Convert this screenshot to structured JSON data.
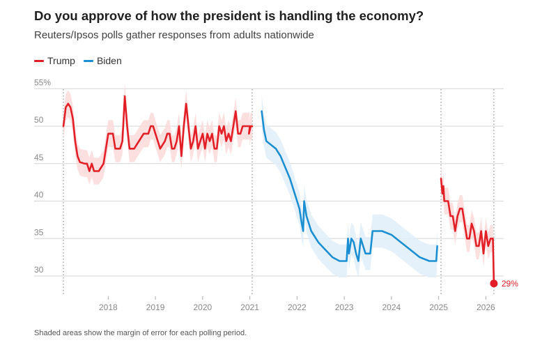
{
  "chart_data": {
    "type": "line",
    "title": "Do you approve of how the president is handling the economy?",
    "subtitle": "Reuters/Ipsos polls gather responses from adults nationwide",
    "footnote": "Shaded areas show the margin of error for each polling period.",
    "y_ticks": [
      {
        "value": 55,
        "label": "55%"
      },
      {
        "value": 50,
        "label": "50"
      },
      {
        "value": 45,
        "label": "45"
      },
      {
        "value": 40,
        "label": "40"
      },
      {
        "value": 35,
        "label": "35"
      },
      {
        "value": 30,
        "label": "30"
      }
    ],
    "x_ticks": [
      {
        "value": 2018,
        "label": "2018"
      },
      {
        "value": 2019,
        "label": "2019"
      },
      {
        "value": 2020,
        "label": "2020"
      },
      {
        "value": 2021,
        "label": "2021"
      },
      {
        "value": 2022,
        "label": "2022"
      },
      {
        "value": 2023,
        "label": "2023"
      },
      {
        "value": 2024,
        "label": "2024"
      },
      {
        "value": 2025,
        "label": "2025"
      },
      {
        "value": 2026,
        "label": "2026"
      }
    ],
    "ylim": [
      27,
      56
    ],
    "xlim": [
      2017.0,
      2026.5
    ],
    "term_markers": [
      2017.05,
      2021.05,
      2025.05,
      2026.17
    ],
    "grid": true,
    "legend_position": "top-left",
    "end_label": {
      "text": "29%",
      "x": 2026.17,
      "y": 29
    },
    "series": [
      {
        "name": "Trump",
        "color": "#e21f26",
        "band_color": "#fbdadb",
        "margin": 1.8,
        "segments": [
          [
            [
              2017.05,
              50
            ],
            [
              2017.1,
              52.5
            ],
            [
              2017.15,
              53
            ],
            [
              2017.2,
              52.5
            ],
            [
              2017.25,
              51
            ],
            [
              2017.3,
              48
            ],
            [
              2017.35,
              46
            ],
            [
              2017.4,
              45.2
            ],
            [
              2017.5,
              45
            ],
            [
              2017.55,
              45
            ],
            [
              2017.6,
              44
            ],
            [
              2017.65,
              45
            ],
            [
              2017.7,
              44
            ],
            [
              2017.8,
              44
            ],
            [
              2017.9,
              45
            ],
            [
              2017.95,
              47
            ],
            [
              2018.0,
              49
            ],
            [
              2018.1,
              49
            ],
            [
              2018.15,
              47
            ],
            [
              2018.25,
              47
            ],
            [
              2018.3,
              48
            ],
            [
              2018.35,
              54
            ],
            [
              2018.4,
              50
            ],
            [
              2018.45,
              47
            ],
            [
              2018.55,
              47
            ],
            [
              2018.65,
              48
            ],
            [
              2018.75,
              49
            ],
            [
              2018.85,
              49
            ],
            [
              2018.9,
              50
            ],
            [
              2018.95,
              50
            ],
            [
              2019.0,
              49
            ],
            [
              2019.05,
              48
            ],
            [
              2019.1,
              47
            ],
            [
              2019.2,
              48
            ],
            [
              2019.25,
              49
            ],
            [
              2019.3,
              49
            ],
            [
              2019.35,
              47
            ],
            [
              2019.4,
              47
            ],
            [
              2019.45,
              48
            ],
            [
              2019.5,
              50
            ],
            [
              2019.55,
              46
            ],
            [
              2019.6,
              50
            ],
            [
              2019.65,
              53
            ],
            [
              2019.7,
              50
            ],
            [
              2019.75,
              47
            ],
            [
              2019.8,
              48
            ],
            [
              2019.85,
              50
            ],
            [
              2019.9,
              47
            ],
            [
              2019.95,
              48
            ],
            [
              2020.0,
              49
            ],
            [
              2020.05,
              47
            ],
            [
              2020.1,
              49
            ],
            [
              2020.15,
              48
            ],
            [
              2020.2,
              49
            ],
            [
              2020.25,
              47
            ],
            [
              2020.3,
              47
            ],
            [
              2020.35,
              50
            ],
            [
              2020.4,
              49
            ],
            [
              2020.45,
              50
            ],
            [
              2020.5,
              48
            ],
            [
              2020.55,
              49
            ],
            [
              2020.6,
              48
            ],
            [
              2020.65,
              50
            ],
            [
              2020.7,
              52
            ],
            [
              2020.75,
              49
            ],
            [
              2020.8,
              49
            ],
            [
              2020.85,
              50
            ],
            [
              2020.9,
              50
            ],
            [
              2021.0,
              50
            ],
            [
              2020.98,
              49
            ],
            [
              2021.02,
              50
            ],
            [
              2021.05,
              50
            ]
          ],
          [
            [
              2025.05,
              43
            ],
            [
              2025.08,
              41
            ],
            [
              2025.1,
              42
            ],
            [
              2025.12,
              40
            ],
            [
              2025.15,
              40
            ],
            [
              2025.2,
              40
            ],
            [
              2025.25,
              38
            ],
            [
              2025.3,
              38
            ],
            [
              2025.35,
              36
            ],
            [
              2025.4,
              38
            ],
            [
              2025.45,
              39
            ],
            [
              2025.5,
              39
            ],
            [
              2025.55,
              37
            ],
            [
              2025.6,
              35
            ],
            [
              2025.65,
              35
            ],
            [
              2025.7,
              37
            ],
            [
              2025.75,
              36
            ],
            [
              2025.8,
              34
            ],
            [
              2025.85,
              34
            ],
            [
              2025.9,
              36
            ],
            [
              2025.95,
              33
            ],
            [
              2026.0,
              36
            ],
            [
              2026.05,
              34
            ],
            [
              2026.1,
              35
            ],
            [
              2026.15,
              35
            ],
            [
              2026.17,
              29
            ]
          ]
        ]
      },
      {
        "name": "Biden",
        "color": "#1b8fd2",
        "band_color": "#e0eff9",
        "margin": 2.2,
        "segments": [
          [
            [
              2021.25,
              52
            ],
            [
              2021.3,
              49.5
            ],
            [
              2021.35,
              48
            ],
            [
              2021.45,
              47.5
            ],
            [
              2021.55,
              47
            ],
            [
              2021.65,
              46
            ],
            [
              2021.75,
              44.5
            ],
            [
              2021.85,
              43
            ],
            [
              2021.95,
              41
            ],
            [
              2022.05,
              39
            ],
            [
              2022.1,
              37
            ],
            [
              2022.13,
              36
            ],
            [
              2022.15,
              40
            ],
            [
              2022.2,
              38
            ],
            [
              2022.3,
              36
            ],
            [
              2022.45,
              34.5
            ],
            [
              2022.6,
              33.5
            ],
            [
              2022.75,
              32.5
            ],
            [
              2022.9,
              32
            ],
            [
              2023.05,
              32
            ],
            [
              2023.08,
              35
            ],
            [
              2023.1,
              33
            ],
            [
              2023.15,
              35
            ],
            [
              2023.2,
              34.5
            ],
            [
              2023.25,
              33
            ],
            [
              2023.3,
              32
            ],
            [
              2023.35,
              35
            ],
            [
              2023.4,
              34
            ],
            [
              2023.45,
              33
            ],
            [
              2023.55,
              33
            ],
            [
              2023.6,
              36
            ],
            [
              2023.8,
              36
            ],
            [
              2024.0,
              35.5
            ],
            [
              2024.2,
              34.5
            ],
            [
              2024.4,
              33.5
            ],
            [
              2024.6,
              32.5
            ],
            [
              2024.8,
              32
            ],
            [
              2024.95,
              32
            ],
            [
              2024.97,
              34
            ]
          ]
        ]
      }
    ]
  }
}
